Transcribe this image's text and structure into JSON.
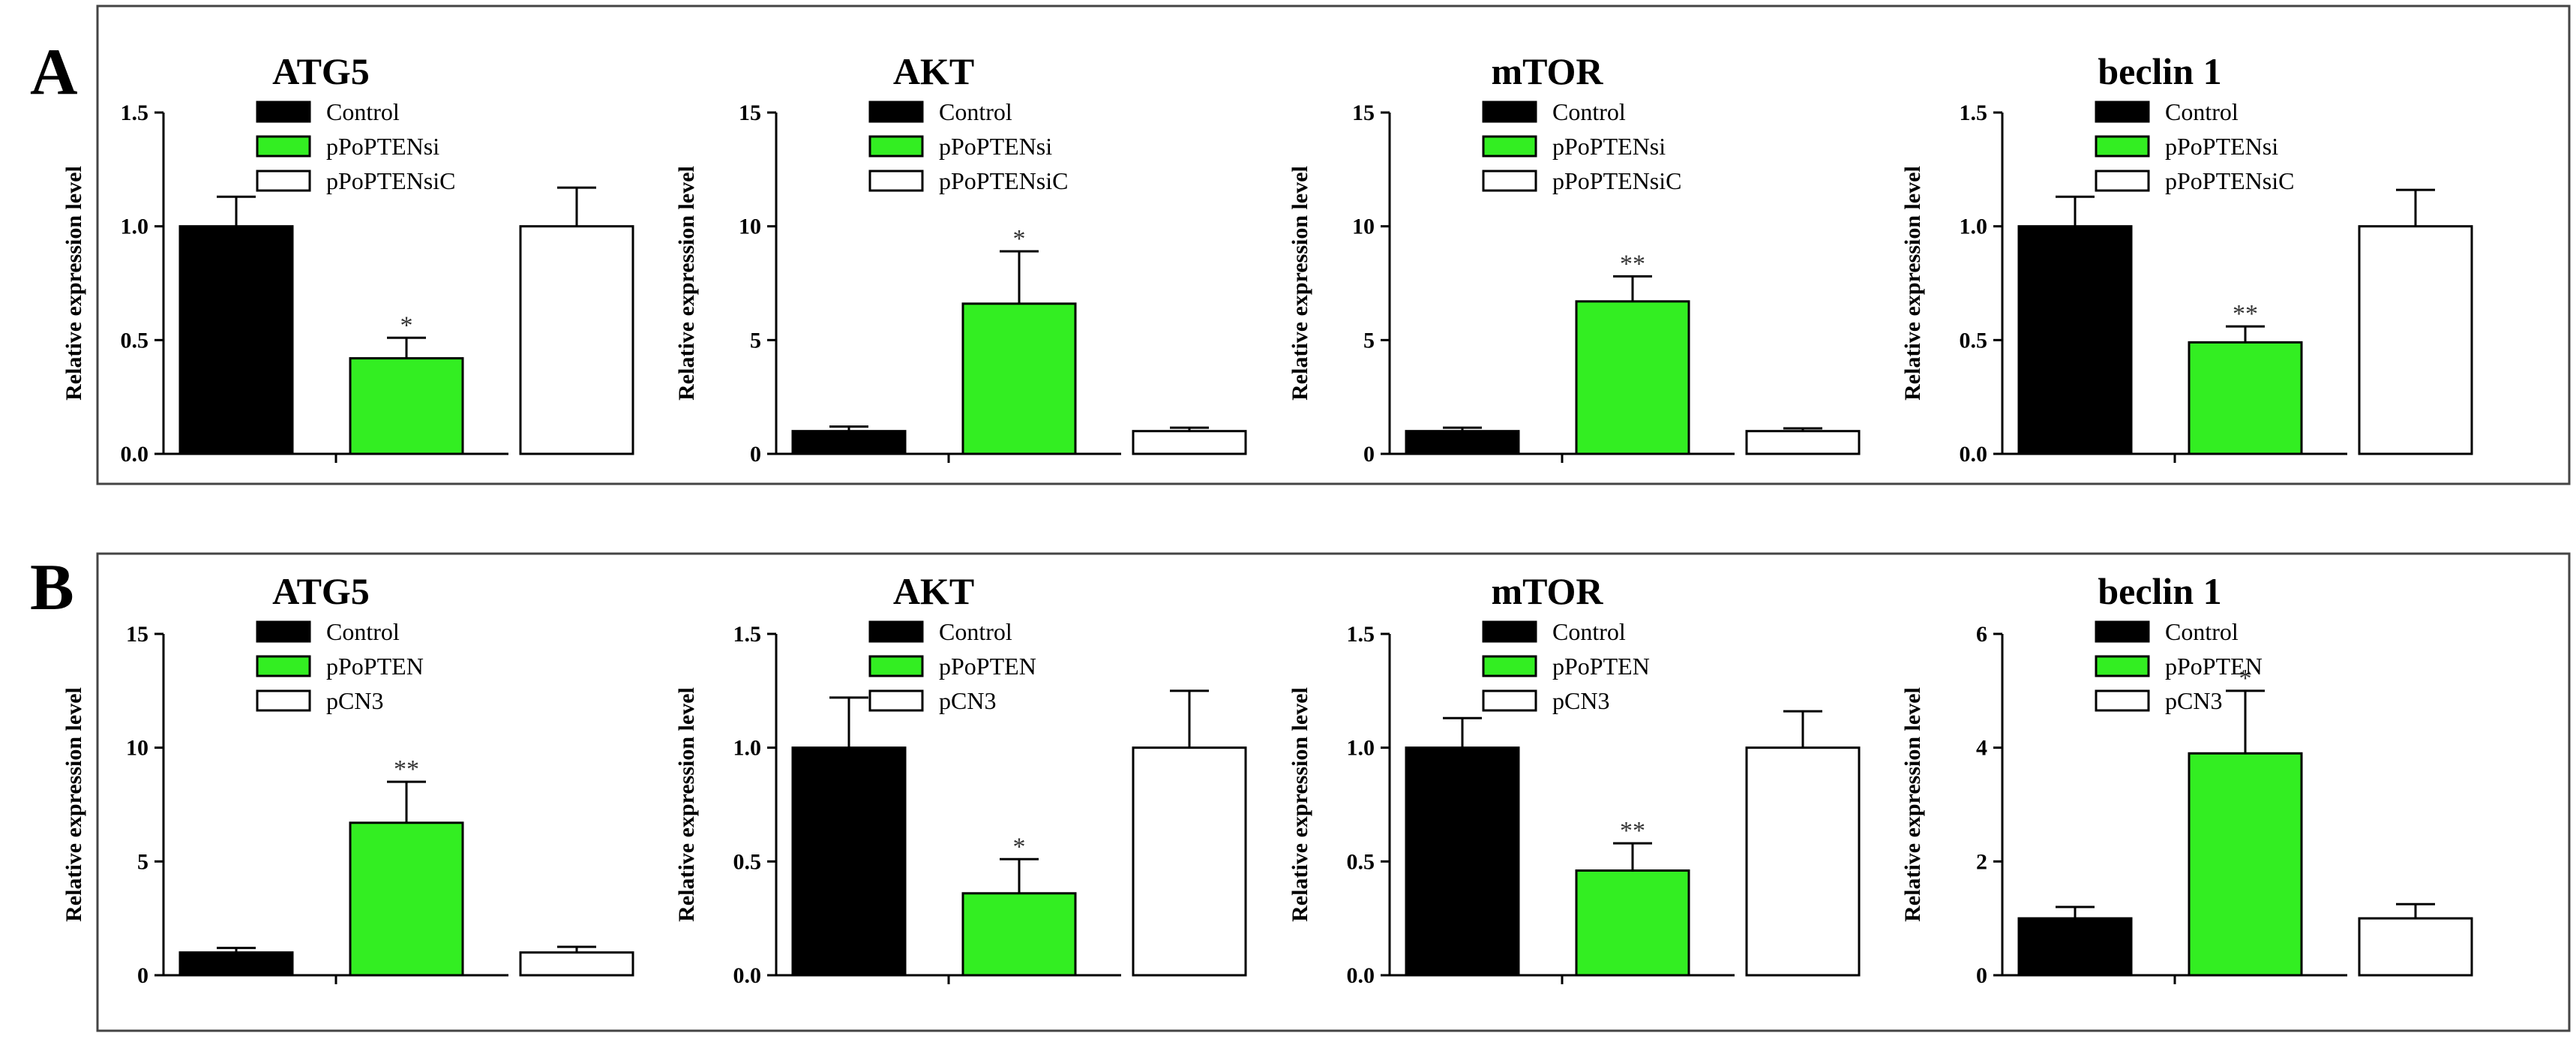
{
  "panels": [
    {
      "label": "A",
      "charts": [
        {
          "title": "ATG5",
          "ylabel": "Relative expression level",
          "ylim": [
            0,
            1.5
          ],
          "ticks": [
            "0.0",
            "0.5",
            "1.0",
            "1.5"
          ],
          "tick_values": [
            0,
            0.5,
            1,
            1.5
          ],
          "legend": [
            "Control",
            "pPoPTENsi",
            "pPoPTENsiC"
          ],
          "bars": [
            {
              "name": "Control",
              "value": 1.0,
              "error": 0.13,
              "color": "#000000",
              "sig": ""
            },
            {
              "name": "pPoPTENsi",
              "value": 0.42,
              "error": 0.09,
              "color": "#33ee22",
              "sig": "*"
            },
            {
              "name": "pPoPTENsiC",
              "value": 1.0,
              "error": 0.17,
              "color": "#ffffff",
              "sig": ""
            }
          ]
        },
        {
          "title": "AKT",
          "ylabel": "Relative expression level",
          "ylim": [
            0,
            15
          ],
          "ticks": [
            "0",
            "5",
            "10",
            "15"
          ],
          "tick_values": [
            0,
            5,
            10,
            15
          ],
          "legend": [
            "Control",
            "pPoPTENsi",
            "pPoPTENsiC"
          ],
          "bars": [
            {
              "name": "Control",
              "value": 1.0,
              "error": 0.2,
              "color": "#000000",
              "sig": ""
            },
            {
              "name": "pPoPTENsi",
              "value": 6.6,
              "error": 2.3,
              "color": "#33ee22",
              "sig": "*"
            },
            {
              "name": "pPoPTENsiC",
              "value": 1.0,
              "error": 0.15,
              "color": "#ffffff",
              "sig": ""
            }
          ]
        },
        {
          "title": "mTOR",
          "ylabel": "Relative expression level",
          "ylim": [
            0,
            15
          ],
          "ticks": [
            "0",
            "5",
            "10",
            "15"
          ],
          "tick_values": [
            0,
            5,
            10,
            15
          ],
          "legend": [
            "Control",
            "pPoPTENsi",
            "pPoPTENsiC"
          ],
          "bars": [
            {
              "name": "Control",
              "value": 1.0,
              "error": 0.15,
              "color": "#000000",
              "sig": ""
            },
            {
              "name": "pPoPTENsi",
              "value": 6.7,
              "error": 1.1,
              "color": "#33ee22",
              "sig": "**"
            },
            {
              "name": "pPoPTENsiC",
              "value": 1.0,
              "error": 0.12,
              "color": "#ffffff",
              "sig": ""
            }
          ]
        },
        {
          "title": "beclin 1",
          "ylabel": "Relative expression level",
          "ylim": [
            0,
            1.5
          ],
          "ticks": [
            "0.0",
            "0.5",
            "1.0",
            "1.5"
          ],
          "tick_values": [
            0,
            0.5,
            1,
            1.5
          ],
          "legend": [
            "Control",
            "pPoPTENsi",
            "pPoPTENsiC"
          ],
          "bars": [
            {
              "name": "Control",
              "value": 1.0,
              "error": 0.13,
              "color": "#000000",
              "sig": ""
            },
            {
              "name": "pPoPTENsi",
              "value": 0.49,
              "error": 0.07,
              "color": "#33ee22",
              "sig": "**"
            },
            {
              "name": "pPoPTENsiC",
              "value": 1.0,
              "error": 0.16,
              "color": "#ffffff",
              "sig": ""
            }
          ]
        }
      ]
    },
    {
      "label": "B",
      "charts": [
        {
          "title": "ATG5",
          "ylabel": "Relative expression level",
          "ylim": [
            0,
            15
          ],
          "ticks": [
            "0",
            "5",
            "10",
            "15"
          ],
          "tick_values": [
            0,
            5,
            10,
            15
          ],
          "legend": [
            "Control",
            "pPoPTEN",
            "pCN3"
          ],
          "bars": [
            {
              "name": "Control",
              "value": 1.0,
              "error": 0.2,
              "color": "#000000",
              "sig": ""
            },
            {
              "name": "pPoPTEN",
              "value": 6.7,
              "error": 1.8,
              "color": "#33ee22",
              "sig": "**"
            },
            {
              "name": "pCN3",
              "value": 1.0,
              "error": 0.25,
              "color": "#ffffff",
              "sig": ""
            }
          ]
        },
        {
          "title": "AKT",
          "ylabel": "Relative expression level",
          "ylim": [
            0,
            1.5
          ],
          "ticks": [
            "0.0",
            "0.5",
            "1.0",
            "1.5"
          ],
          "tick_values": [
            0,
            0.5,
            1,
            1.5
          ],
          "legend": [
            "Control",
            "pPoPTEN",
            "pCN3"
          ],
          "bars": [
            {
              "name": "Control",
              "value": 1.0,
              "error": 0.22,
              "color": "#000000",
              "sig": ""
            },
            {
              "name": "pPoPTEN",
              "value": 0.36,
              "error": 0.15,
              "color": "#33ee22",
              "sig": "*"
            },
            {
              "name": "pCN3",
              "value": 1.0,
              "error": 0.25,
              "color": "#ffffff",
              "sig": ""
            }
          ]
        },
        {
          "title": "mTOR",
          "ylabel": "Relative expression level",
          "ylim": [
            0,
            1.5
          ],
          "ticks": [
            "0.0",
            "0.5",
            "1.0",
            "1.5"
          ],
          "tick_values": [
            0,
            0.5,
            1,
            1.5
          ],
          "legend": [
            "Control",
            "pPoPTEN",
            "pCN3"
          ],
          "bars": [
            {
              "name": "Control",
              "value": 1.0,
              "error": 0.13,
              "color": "#000000",
              "sig": ""
            },
            {
              "name": "pPoPTEN",
              "value": 0.46,
              "error": 0.12,
              "color": "#33ee22",
              "sig": "**"
            },
            {
              "name": "pCN3",
              "value": 1.0,
              "error": 0.16,
              "color": "#ffffff",
              "sig": ""
            }
          ]
        },
        {
          "title": "beclin 1",
          "ylabel": "Relative expression level",
          "ylim": [
            0,
            6
          ],
          "ticks": [
            "0",
            "2",
            "4",
            "6"
          ],
          "tick_values": [
            0,
            2,
            4,
            6
          ],
          "legend": [
            "Control",
            "pPoPTEN",
            "pCN3"
          ],
          "bars": [
            {
              "name": "Control",
              "value": 1.0,
              "error": 0.2,
              "color": "#000000",
              "sig": ""
            },
            {
              "name": "pPoPTEN",
              "value": 3.9,
              "error": 1.1,
              "color": "#33ee22",
              "sig": "*"
            },
            {
              "name": "pCN3",
              "value": 1.0,
              "error": 0.25,
              "color": "#ffffff",
              "sig": ""
            }
          ]
        }
      ]
    }
  ],
  "chart_data": [
    {
      "type": "bar",
      "panel": "A",
      "title": "ATG5",
      "categories": [
        "Control",
        "pPoPTENsi",
        "pPoPTENsiC"
      ],
      "values": [
        1.0,
        0.42,
        1.0
      ],
      "errors": [
        0.13,
        0.09,
        0.17
      ],
      "ylabel": "Relative expression level",
      "ylim": [
        0,
        1.5
      ]
    },
    {
      "type": "bar",
      "panel": "A",
      "title": "AKT",
      "categories": [
        "Control",
        "pPoPTENsi",
        "pPoPTENsiC"
      ],
      "values": [
        1.0,
        6.6,
        1.0
      ],
      "errors": [
        0.2,
        2.3,
        0.15
      ],
      "ylabel": "Relative expression level",
      "ylim": [
        0,
        15
      ]
    },
    {
      "type": "bar",
      "panel": "A",
      "title": "mTOR",
      "categories": [
        "Control",
        "pPoPTENsi",
        "pPoPTENsiC"
      ],
      "values": [
        1.0,
        6.7,
        1.0
      ],
      "errors": [
        0.15,
        1.1,
        0.12
      ],
      "ylabel": "Relative expression level",
      "ylim": [
        0,
        15
      ]
    },
    {
      "type": "bar",
      "panel": "A",
      "title": "beclin 1",
      "categories": [
        "Control",
        "pPoPTENsi",
        "pPoPTENsiC"
      ],
      "values": [
        1.0,
        0.49,
        1.0
      ],
      "errors": [
        0.13,
        0.07,
        0.16
      ],
      "ylabel": "Relative expression level",
      "ylim": [
        0,
        1.5
      ]
    },
    {
      "type": "bar",
      "panel": "B",
      "title": "ATG5",
      "categories": [
        "Control",
        "pPoPTEN",
        "pCN3"
      ],
      "values": [
        1.0,
        6.7,
        1.0
      ],
      "errors": [
        0.2,
        1.8,
        0.25
      ],
      "ylabel": "Relative expression level",
      "ylim": [
        0,
        15
      ]
    },
    {
      "type": "bar",
      "panel": "B",
      "title": "AKT",
      "categories": [
        "Control",
        "pPoPTEN",
        "pCN3"
      ],
      "values": [
        1.0,
        0.36,
        1.0
      ],
      "errors": [
        0.22,
        0.15,
        0.25
      ],
      "ylabel": "Relative expression level",
      "ylim": [
        0,
        1.5
      ]
    },
    {
      "type": "bar",
      "panel": "B",
      "title": "mTOR",
      "categories": [
        "Control",
        "pPoPTEN",
        "pCN3"
      ],
      "values": [
        1.0,
        0.46,
        1.0
      ],
      "errors": [
        0.13,
        0.12,
        0.16
      ],
      "ylabel": "Relative expression level",
      "ylim": [
        0,
        1.5
      ]
    },
    {
      "type": "bar",
      "panel": "B",
      "title": "beclin 1",
      "categories": [
        "Control",
        "pPoPTEN",
        "pCN3"
      ],
      "values": [
        1.0,
        3.9,
        1.0
      ],
      "errors": [
        0.2,
        1.1,
        0.25
      ],
      "ylabel": "Relative expression level",
      "ylim": [
        0,
        6
      ]
    }
  ]
}
